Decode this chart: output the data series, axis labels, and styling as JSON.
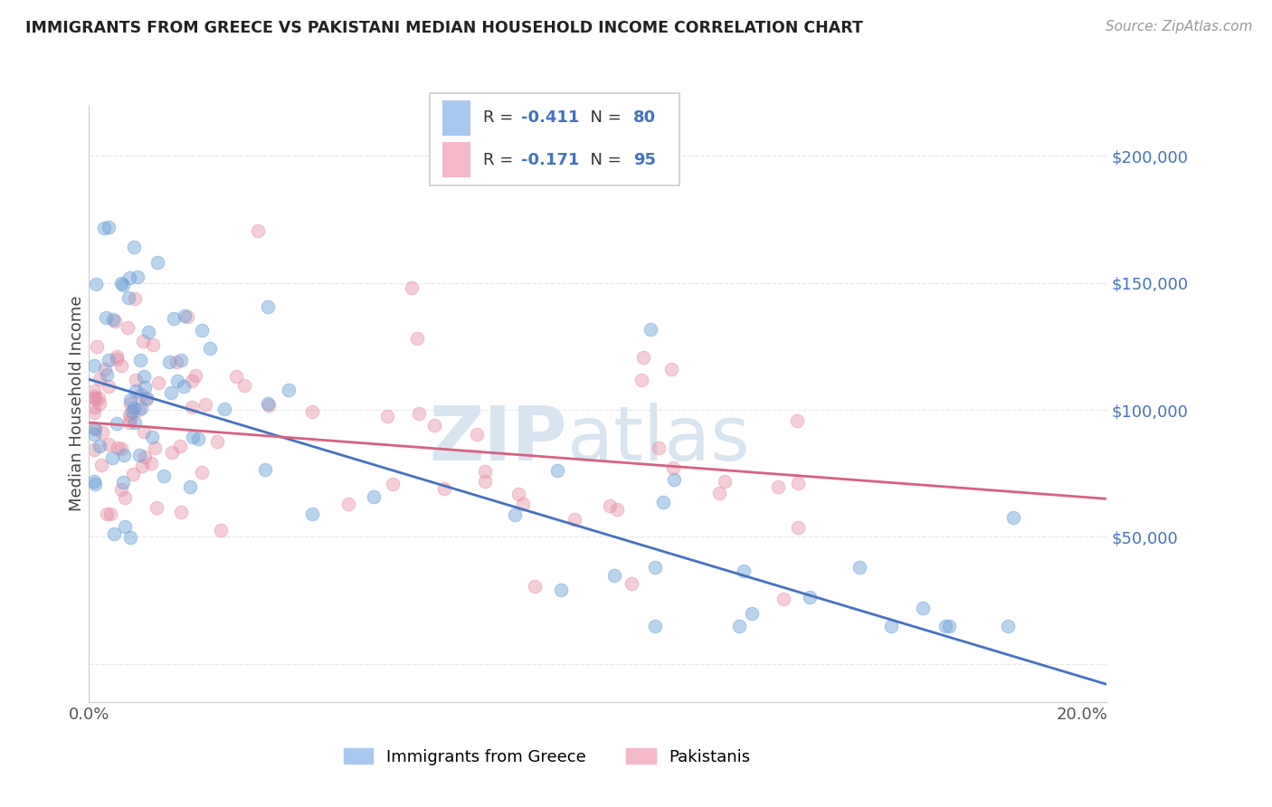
{
  "title": "IMMIGRANTS FROM GREECE VS PAKISTANI MEDIAN HOUSEHOLD INCOME CORRELATION CHART",
  "source": "Source: ZipAtlas.com",
  "ylabel": "Median Household Income",
  "xlim": [
    0.0,
    0.205
  ],
  "ylim": [
    -15000,
    220000
  ],
  "yticks": [
    0,
    50000,
    100000,
    150000,
    200000
  ],
  "ytick_labels": [
    "",
    "$50,000",
    "$100,000",
    "$150,000",
    "$200,000"
  ],
  "legend1_label_r": "R = -0.411",
  "legend1_label_n": "N = 80",
  "legend2_label_r": "R = -0.171",
  "legend2_label_n": "N = 95",
  "legend1_color": "#a8c8f0",
  "legend2_color": "#f4b8c8",
  "line1_color": "#4472c4",
  "line2_color": "#d96080",
  "scatter1_color": "#6aa0d8",
  "scatter2_color": "#e890a8",
  "watermark_zip": "ZIP",
  "watermark_atlas": "atlas",
  "watermark_color": "#d8e4f0",
  "background_color": "#ffffff",
  "grid_color": "#e8e8e8",
  "blue_line_x0": 0.0,
  "blue_line_y0": 112000,
  "blue_line_x1": 0.205,
  "blue_line_y1": -8000,
  "pink_line_x0": 0.0,
  "pink_line_y0": 95000,
  "pink_line_x1": 0.205,
  "pink_line_y1": 65000
}
